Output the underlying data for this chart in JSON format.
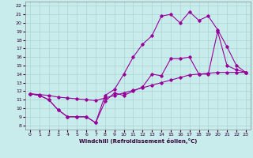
{
  "xlabel": "Windchill (Refroidissement éolien,°C)",
  "bg_color": "#c8ecec",
  "grid_color": "#aad4d4",
  "line_color": "#990099",
  "xlim": [
    -0.5,
    23.5
  ],
  "ylim": [
    7.5,
    22.5
  ],
  "xticks": [
    0,
    1,
    2,
    3,
    4,
    5,
    6,
    7,
    8,
    9,
    10,
    11,
    12,
    13,
    14,
    15,
    16,
    17,
    18,
    19,
    20,
    21,
    22,
    23
  ],
  "yticks": [
    8,
    9,
    10,
    11,
    12,
    13,
    14,
    15,
    16,
    17,
    18,
    19,
    20,
    21,
    22
  ],
  "line1_x": [
    0,
    1,
    2,
    3,
    4,
    5,
    6,
    7,
    8,
    9,
    10,
    11,
    12,
    13,
    14,
    15,
    16,
    17,
    18,
    19,
    20,
    21,
    22,
    23
  ],
  "line1_y": [
    11.7,
    11.5,
    11.0,
    9.8,
    9.0,
    9.0,
    9.0,
    8.3,
    10.8,
    11.8,
    11.5,
    12.0,
    12.5,
    14.0,
    13.8,
    15.8,
    15.8,
    16.0,
    14.0,
    14.0,
    19.0,
    15.0,
    14.5,
    14.2
  ],
  "line2_x": [
    0,
    1,
    2,
    3,
    4,
    5,
    6,
    7,
    8,
    9,
    10,
    11,
    12,
    13,
    14,
    15,
    16,
    17,
    18,
    19,
    20,
    21,
    22,
    23
  ],
  "line2_y": [
    11.7,
    11.5,
    11.0,
    9.8,
    9.0,
    9.0,
    9.0,
    8.3,
    11.5,
    12.2,
    14.0,
    16.0,
    17.5,
    18.5,
    20.8,
    21.0,
    20.0,
    21.3,
    20.3,
    20.8,
    19.2,
    17.2,
    15.0,
    14.2
  ],
  "line3_x": [
    0,
    1,
    2,
    3,
    4,
    5,
    6,
    7,
    8,
    9,
    10,
    11,
    12,
    13,
    14,
    15,
    16,
    17,
    18,
    19,
    20,
    21,
    22,
    23
  ],
  "line3_y": [
    11.7,
    11.6,
    11.5,
    11.3,
    11.2,
    11.1,
    11.0,
    10.9,
    11.2,
    11.5,
    11.8,
    12.1,
    12.4,
    12.7,
    13.0,
    13.3,
    13.6,
    13.9,
    14.0,
    14.1,
    14.2,
    14.2,
    14.2,
    14.2
  ]
}
